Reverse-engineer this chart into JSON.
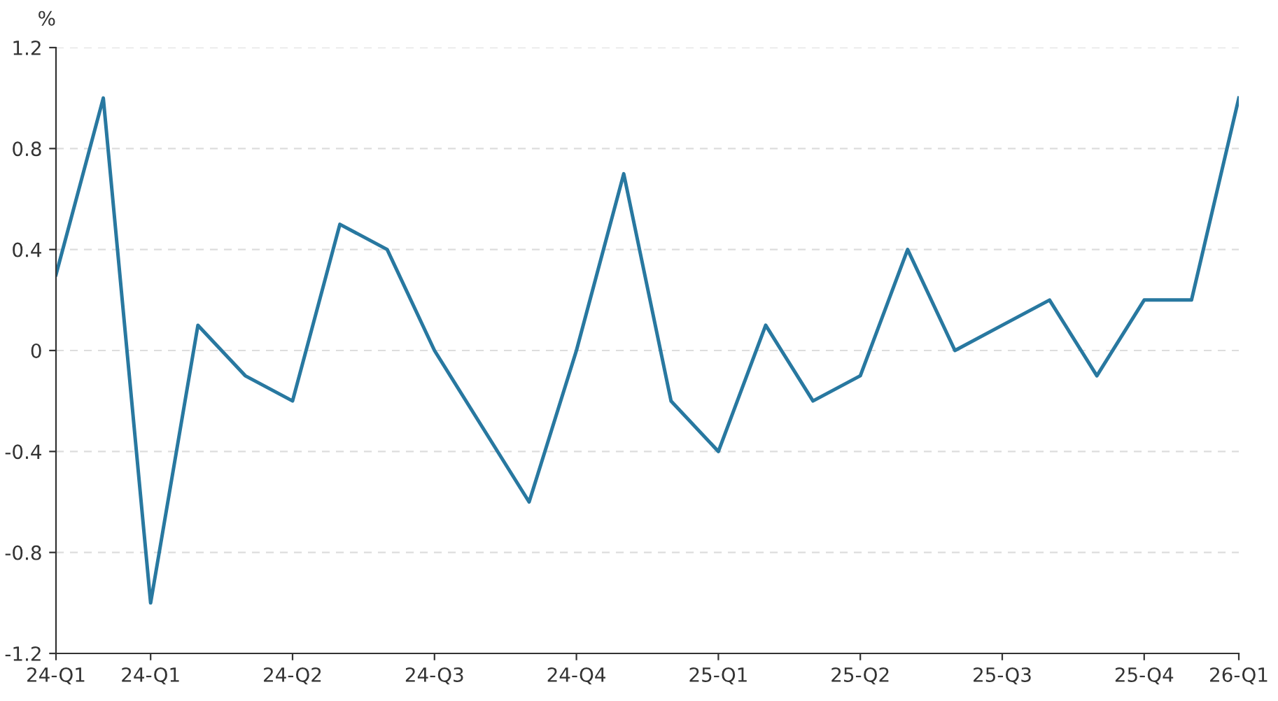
{
  "chart_data": {
    "type": "line",
    "ylabel": "%",
    "categories": [
      "24-Q1",
      null,
      "24-Q1",
      null,
      null,
      "24-Q2",
      null,
      null,
      "24-Q3",
      null,
      null,
      "24-Q4",
      null,
      null,
      "25-Q1",
      null,
      null,
      "25-Q2",
      null,
      null,
      "25-Q3",
      null,
      null,
      "25-Q4",
      null,
      "26-Q1"
    ],
    "series": [
      {
        "color": "#2878a0",
        "values": [
          0.3,
          1.0,
          -1.0,
          0.1,
          -0.1,
          -0.2,
          0.5,
          0.4,
          0.0,
          -0.3,
          -0.6,
          0.0,
          0.7,
          -0.2,
          -0.4,
          0.1,
          -0.2,
          -0.1,
          0.4,
          0.0,
          0.1,
          0.2,
          -0.1,
          0.2,
          0.2,
          1.0
        ]
      }
    ],
    "ylim": [
      -1.2,
      1.2
    ],
    "yticks": [
      -1.2,
      -0.8,
      -0.4,
      0,
      0.4,
      0.8,
      1.2
    ],
    "grid": "y",
    "marker": "none",
    "line_style": "solid"
  }
}
